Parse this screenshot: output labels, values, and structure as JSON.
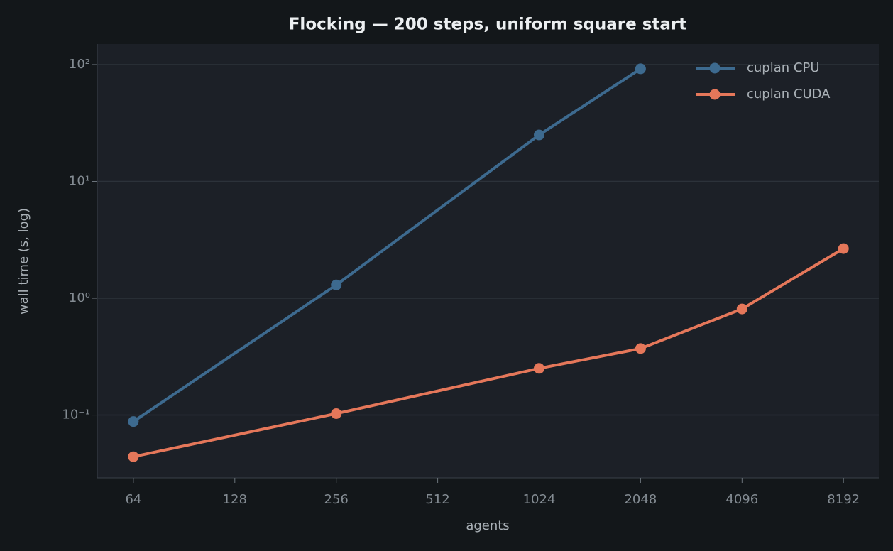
{
  "chart_data": {
    "type": "line",
    "title": "Flocking — 200 steps, uniform square start",
    "xlabel": "agents",
    "ylabel": "wall time (s, log)",
    "x": [
      64,
      256,
      1024,
      2048,
      4096,
      8192
    ],
    "series": [
      {
        "name": "cuplan CPU",
        "color": "#3d6a8f",
        "values": [
          0.088,
          1.3,
          25,
          92,
          null,
          null
        ]
      },
      {
        "name": "cuplan CUDA",
        "color": "#e5775a",
        "values": [
          0.044,
          0.103,
          0.251,
          0.371,
          0.81,
          2.66
        ]
      }
    ],
    "xscale": "log2",
    "yscale": "log",
    "xlim": [
      50,
      10430
    ],
    "xticks": [
      64,
      128,
      256,
      512,
      1024,
      2048,
      4096,
      8192
    ],
    "ylim": [
      0.029,
      150
    ],
    "yticks": [
      {
        "value": 0.1,
        "label": "10⁻¹"
      },
      {
        "value": 1,
        "label": "10⁰"
      },
      {
        "value": 10,
        "label": "10¹"
      },
      {
        "value": 100,
        "label": "10²"
      }
    ],
    "grid": true,
    "legend": "upper right"
  }
}
